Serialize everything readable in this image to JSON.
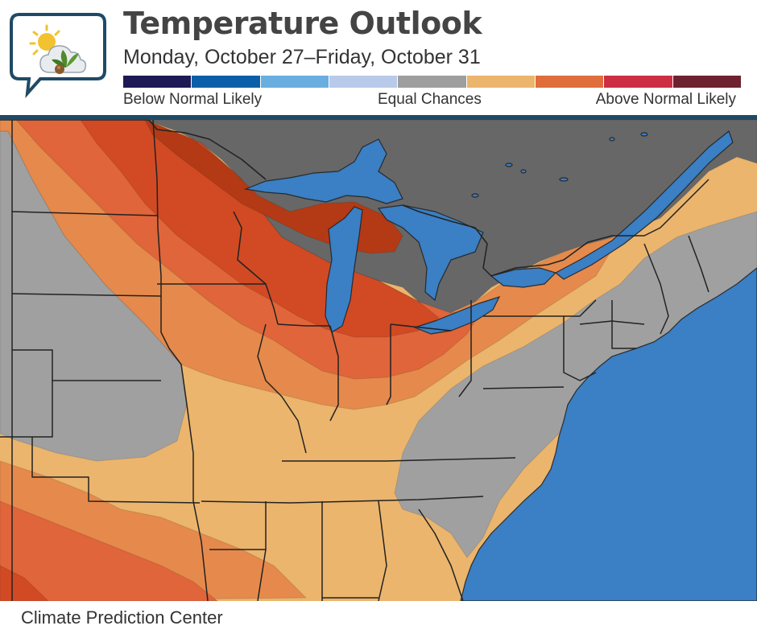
{
  "header": {
    "title": "Temperature Outlook",
    "subtitle": "Monday, October 27–Friday, October 31"
  },
  "legend": {
    "colors": [
      "#1e1a55",
      "#0b5fa8",
      "#6aaee0",
      "#b9c9ea",
      "#9e9e9e",
      "#ebb56d",
      "#e06d3c",
      "#cc2e44",
      "#6e2230"
    ],
    "labels": {
      "left": "Below Normal Likely",
      "middle": "Equal Chances",
      "right": "Above Normal Likely"
    }
  },
  "map": {
    "region": "Eastern and Central United States",
    "colors": {
      "water": "#3b7fc4",
      "canada": "#676767",
      "equal_chances": "#a0a0a0",
      "above_tier1": "#ebb56d",
      "above_tier2": "#e58a4c",
      "above_tier3": "#e0653a",
      "above_tier4": "#d14a24",
      "above_tier5": "#b33a15",
      "border_line": "#222222",
      "divider": "#1f4a66"
    }
  },
  "footer": {
    "source": "Climate Prediction Center"
  }
}
